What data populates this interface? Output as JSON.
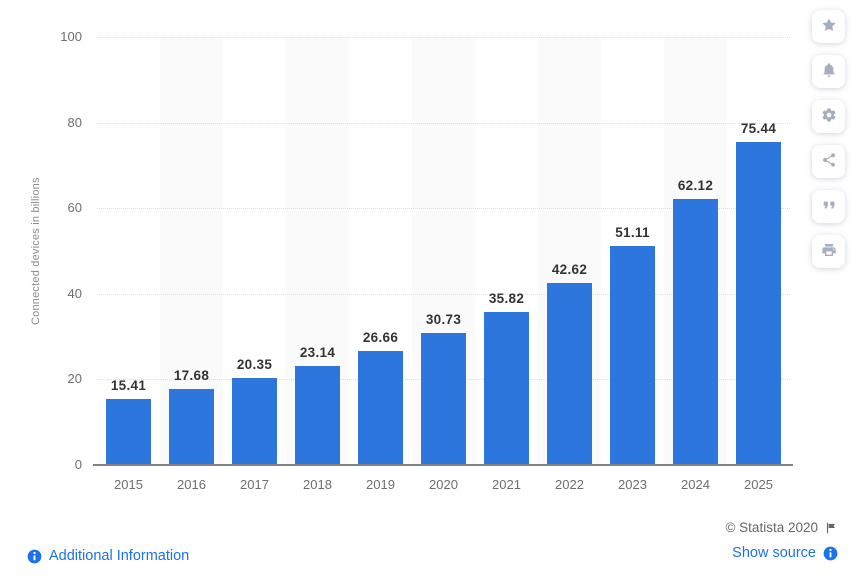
{
  "chart_data": {
    "type": "bar",
    "title": "",
    "categories": [
      "2015",
      "2016",
      "2017",
      "2018",
      "2019",
      "2020",
      "2021",
      "2022",
      "2023",
      "2024",
      "2025"
    ],
    "values": [
      15.41,
      17.68,
      20.35,
      23.14,
      26.66,
      30.73,
      35.82,
      42.62,
      51.11,
      62.12,
      75.44
    ],
    "data_labels": [
      "15.41",
      "17.68",
      "20.35",
      "23.14",
      "26.66",
      "30.73",
      "35.82",
      "42.62",
      "51.11",
      "62.12",
      "75.44"
    ],
    "xlabel": "",
    "ylabel": "Connected devices in billions",
    "ylim": [
      0,
      100
    ],
    "yticks": [
      0,
      20,
      40,
      60,
      80,
      100
    ],
    "grid": true,
    "gridline_style": "dotted",
    "legend_position": "none",
    "bar_color": "#2c76dd",
    "band_color": "#fafafa",
    "band_columns": [
      1,
      3,
      5,
      7,
      9
    ],
    "data_label_color": "#333333",
    "axis_label_color": "#6e6e6e"
  },
  "toolbar": {
    "buttons": [
      {
        "icon": "star-icon",
        "name": "favorite"
      },
      {
        "icon": "bell-icon",
        "name": "notifications"
      },
      {
        "icon": "gear-icon",
        "name": "settings"
      },
      {
        "icon": "share-icon",
        "name": "share"
      },
      {
        "icon": "quote-icon",
        "name": "cite"
      },
      {
        "icon": "printer-icon",
        "name": "print"
      }
    ]
  },
  "footer": {
    "copyright": "© Statista 2020",
    "copyright_color": "#666666",
    "additional_info": "Additional Information",
    "show_source": "Show source",
    "link_color": "#1a73e8"
  }
}
